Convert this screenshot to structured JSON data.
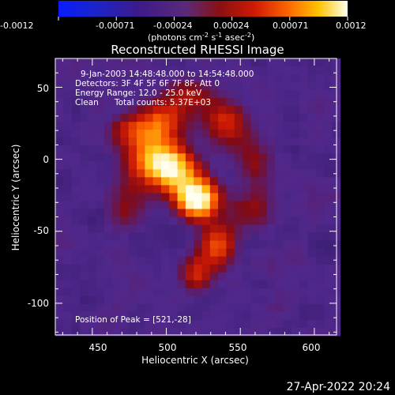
{
  "chart_data": {
    "type": "heatmap",
    "title": "Reconstructed RHESSI Image",
    "xlabel": "Heliocentric X (arcsec)",
    "ylabel": "Heliocentric Y (arcsec)",
    "xlim": [
      425,
      615
    ],
    "ylim": [
      -122,
      70
    ],
    "x_ticks": [
      450,
      500,
      550,
      600
    ],
    "y_ticks": [
      50,
      0,
      -50,
      -100
    ],
    "colorbar": {
      "ticks": [
        "-0.0012",
        "-0.00071",
        "-0.00024",
        "0.00024",
        "0.00071",
        "0.0012"
      ],
      "range": [
        -0.0012,
        0.0012
      ],
      "unit_label": {
        "main": "(photons cm",
        "exp1": "-2",
        "mid1": " s",
        "exp2": "-1",
        "mid2": " asec",
        "exp3": "-2",
        "end": ")"
      }
    },
    "annotations": {
      "time": "9-Jan-2003 14:48:48.000 to 14:54:48.000",
      "detectors": "Detectors: 3F 4F 5F 6F 7F 8F, Att 0",
      "energy": "Energy Range: 12.0 - 25.0 keV",
      "method": "Clean",
      "counts": "Total counts: 5.37E+03",
      "peak": "Position of Peak = [521,-28]"
    },
    "peak": {
      "x": 521,
      "y": -28
    },
    "sources": [
      {
        "x": 521,
        "y": -28,
        "amp": 1.0,
        "sx": 10,
        "sy": 10
      },
      {
        "x": 505,
        "y": -8,
        "amp": 0.72,
        "sx": 12,
        "sy": 11
      },
      {
        "x": 488,
        "y": 0,
        "amp": 0.5,
        "sx": 14,
        "sy": 13
      },
      {
        "x": 497,
        "y": 25,
        "amp": 0.45,
        "sx": 12,
        "sy": 12
      },
      {
        "x": 475,
        "y": 20,
        "amp": 0.3,
        "sx": 12,
        "sy": 10
      },
      {
        "x": 472,
        "y": -35,
        "amp": 0.3,
        "sx": 12,
        "sy": 14
      },
      {
        "x": 535,
        "y": -60,
        "amp": 0.5,
        "sx": 10,
        "sy": 12
      },
      {
        "x": 520,
        "y": -80,
        "amp": 0.4,
        "sx": 9,
        "sy": 10
      },
      {
        "x": 540,
        "y": 25,
        "amp": 0.45,
        "sx": 12,
        "sy": 12
      },
      {
        "x": 560,
        "y": 0,
        "amp": 0.3,
        "sx": 11,
        "sy": 12
      },
      {
        "x": 558,
        "y": -35,
        "amp": 0.32,
        "sx": 11,
        "sy": 12
      },
      {
        "x": 518,
        "y": 45,
        "amp": 0.35,
        "sx": 13,
        "sy": 9
      }
    ]
  },
  "footer": {
    "timestamp": "27-Apr-2022 20:24"
  }
}
